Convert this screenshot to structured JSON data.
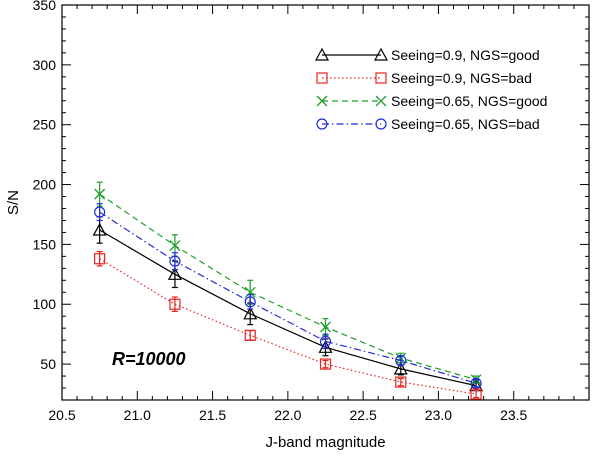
{
  "chart_data": {
    "type": "line",
    "title": "",
    "xlabel": "J-band magnitude",
    "ylabel": "S/N",
    "xlim": [
      20.5,
      24.0
    ],
    "ylim": [
      20,
      350
    ],
    "xticks": [
      20.5,
      21.0,
      21.5,
      22.0,
      22.5,
      23.0,
      23.5
    ],
    "xtick_labels": [
      "20.5",
      "21.0",
      "21.5",
      "22.0",
      "22.5",
      "23.0",
      "23.5"
    ],
    "yticks": [
      50,
      100,
      150,
      200,
      250,
      300,
      350
    ],
    "ytick_labels": [
      "50",
      "100",
      "150",
      "200",
      "250",
      "300",
      "350"
    ],
    "annotation": "R=10000",
    "legend_position": "top-right",
    "x": [
      20.75,
      21.25,
      21.75,
      22.25,
      22.75,
      23.25
    ],
    "series": [
      {
        "name": "Seeing=0.9, NGS=good",
        "color": "#000000",
        "marker": "triangle",
        "linestyle": "solid",
        "values": [
          162,
          125,
          92,
          64,
          46,
          32
        ],
        "errors": [
          11,
          11,
          9,
          7,
          5,
          4
        ]
      },
      {
        "name": "Seeing=0.9, NGS=bad",
        "color": "#e8221e",
        "marker": "square",
        "linestyle": "dotted",
        "values": [
          138,
          100,
          74,
          50,
          35,
          25
        ],
        "errors": [
          6,
          6,
          4,
          3,
          3,
          3
        ]
      },
      {
        "name": "Seeing=0.65, NGS=good",
        "color": "#1f9e2c",
        "marker": "cross",
        "linestyle": "dashed",
        "values": [
          192,
          149,
          110,
          81,
          55,
          37
        ],
        "errors": [
          10,
          9,
          10,
          7,
          4,
          3
        ]
      },
      {
        "name": "Seeing=0.65, NGS=bad",
        "color": "#1f2bd6",
        "marker": "circle",
        "linestyle": "dashdot",
        "values": [
          177,
          136,
          102,
          69,
          53,
          34
        ],
        "errors": [
          7,
          7,
          6,
          6,
          4,
          3
        ]
      }
    ]
  }
}
